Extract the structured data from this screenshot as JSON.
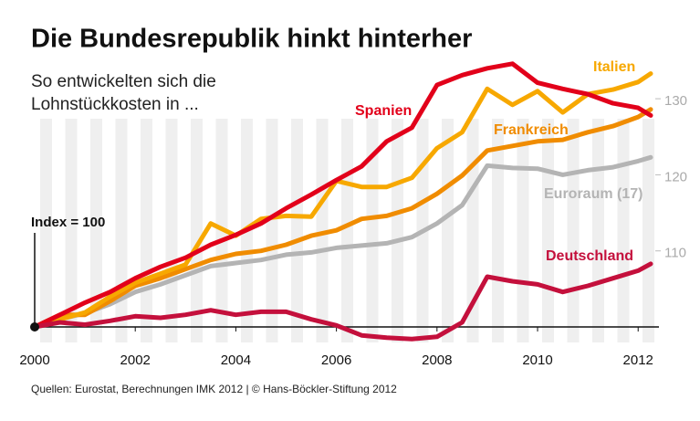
{
  "chart_data": {
    "type": "line",
    "title": "Die Bundesrepublik hinkt hinterher",
    "subtitle": [
      "So entwickelten sich die",
      "Lohnstückkosten in ..."
    ],
    "annotation": "Index = 100",
    "source": "Quellen: Eurostat, Berechnungen IMK 2012 | © Hans-Böckler-Stiftung 2012",
    "x": [
      2000,
      2000.5,
      2001,
      2001.5,
      2002,
      2002.5,
      2003,
      2003.5,
      2004,
      2004.5,
      2005,
      2005.5,
      2006,
      2006.5,
      2007,
      2007.5,
      2008,
      2008.5,
      2009,
      2009.5,
      2010,
      2010.5,
      2011,
      2011.5,
      2012,
      2012.25
    ],
    "series": [
      {
        "name": "Euroraum (17)",
        "color": "#b4b4b4",
        "values": [
          100,
          101,
          101.8,
          103,
          104.6,
          105.6,
          106.8,
          108,
          108.4,
          108.8,
          109.5,
          109.8,
          110.4,
          110.7,
          111,
          111.8,
          113.6,
          116,
          121.2,
          120.9,
          120.8,
          120,
          120.6,
          121,
          121.8,
          122.3
        ]
      },
      {
        "name": "Frankreich",
        "color": "#f08c00",
        "values": [
          100,
          101.6,
          101.6,
          103.4,
          105.4,
          106.4,
          107.6,
          108.8,
          109.6,
          110,
          110.8,
          112,
          112.7,
          114.2,
          114.6,
          115.6,
          117.5,
          119.9,
          123.2,
          123.8,
          124.4,
          124.6,
          125.6,
          126.4,
          127.6,
          128.6
        ]
      },
      {
        "name": "Italien",
        "color": "#f7a800",
        "values": [
          100,
          101,
          101.9,
          104,
          105.8,
          107,
          108.2,
          113.6,
          112,
          114.2,
          114.6,
          114.5,
          119.2,
          118.4,
          118.4,
          119.6,
          123.5,
          125.6,
          131.3,
          129.2,
          131,
          128.2,
          130.6,
          131.2,
          132.2,
          133.3
        ]
      },
      {
        "name": "Spanien",
        "color": "#e2001a",
        "values": [
          100,
          101.6,
          103.2,
          104.6,
          106.4,
          107.9,
          109.1,
          110.8,
          112.1,
          113.6,
          115.6,
          117.4,
          119.3,
          121.1,
          124.4,
          126.2,
          131.8,
          133.1,
          134,
          134.6,
          132.1,
          131.3,
          130.6,
          129.4,
          128.8,
          127.8
        ]
      },
      {
        "name": "Deutschland",
        "color": "#c4103c",
        "values": [
          100,
          100.6,
          100.3,
          100.8,
          101.4,
          101.2,
          101.6,
          102.2,
          101.6,
          102,
          102,
          101,
          100.2,
          98.9,
          98.6,
          98.4,
          98.7,
          100.6,
          106.6,
          106,
          105.6,
          104.6,
          105.4,
          106.4,
          107.4,
          108.3
        ]
      }
    ],
    "xlim": [
      2000,
      2012.25
    ],
    "xticks": [
      2000,
      2002,
      2004,
      2006,
      2008,
      2010,
      2012
    ],
    "ylim": [
      97,
      137
    ],
    "yticks": [
      110,
      120,
      130
    ],
    "base": 100,
    "grid": false
  }
}
